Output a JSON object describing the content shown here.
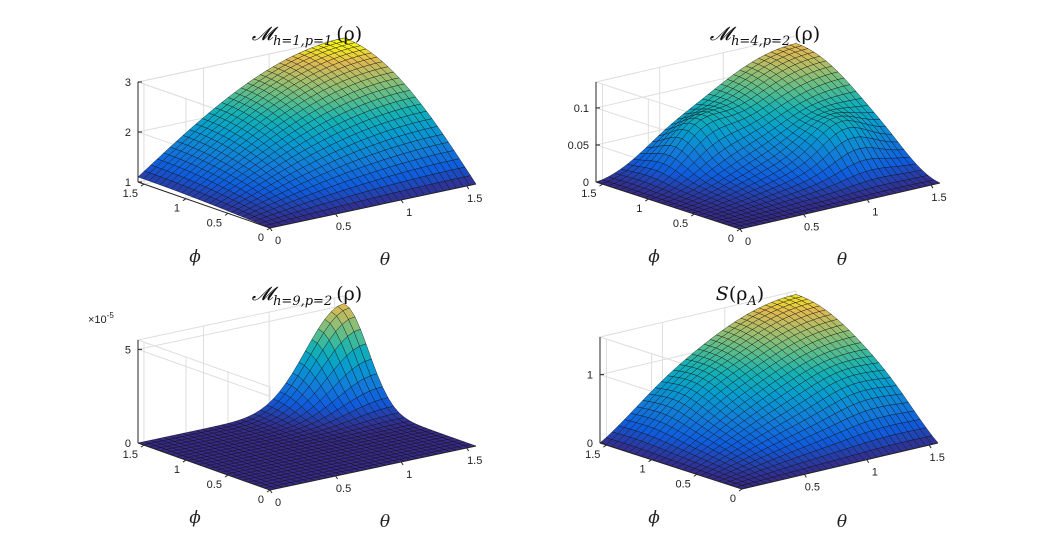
{
  "figure": {
    "panels": [
      {
        "title": {
          "main": "𝓜",
          "sub": "h=1,p=1",
          "arg": "(ρ)"
        },
        "exponent_label": "",
        "chart_data": {
          "type": "surface",
          "xlabel": "θ",
          "ylabel": "ϕ",
          "xlim": [
            0,
            1.5708
          ],
          "ylim": [
            0,
            1.5708
          ],
          "zlim": [
            1,
            3
          ],
          "x_ticks": [
            "0",
            "0.5",
            "1",
            "1.5"
          ],
          "y_ticks": [
            "0",
            "0.5",
            "1",
            "1.5"
          ],
          "z_ticks": [
            "1",
            "2",
            "3"
          ],
          "z_tick_values": [
            1,
            2,
            3
          ],
          "grid": true,
          "colormap": "parula",
          "surface_model": {
            "kind": "m11",
            "x_count": 33,
            "y_count": 25
          }
        }
      },
      {
        "title": {
          "main": "𝓜",
          "sub": "h=4,p=2",
          "arg": "(ρ)"
        },
        "exponent_label": "",
        "chart_data": {
          "type": "surface",
          "xlabel": "θ",
          "ylabel": "ϕ",
          "xlim": [
            0,
            1.5708
          ],
          "ylim": [
            0,
            1.5708
          ],
          "zlim": [
            0,
            0.135
          ],
          "x_ticks": [
            "0",
            "0.5",
            "1",
            "1.5"
          ],
          "y_ticks": [
            "0",
            "0.5",
            "1",
            "1.5"
          ],
          "z_ticks": [
            "0",
            "0.05",
            "0.1"
          ],
          "z_tick_values": [
            0,
            0.05,
            0.1
          ],
          "grid": true,
          "colormap": "parula",
          "surface_model": {
            "kind": "m42",
            "x_count": 33,
            "y_count": 25
          }
        }
      },
      {
        "title": {
          "main": "𝓜",
          "sub": "h=9,p=2",
          "arg": "(ρ)"
        },
        "exponent_label": "×10",
        "exponent_power": "-5",
        "chart_data": {
          "type": "surface",
          "xlabel": "θ",
          "ylabel": "ϕ",
          "xlim": [
            0,
            1.5708
          ],
          "ylim": [
            0,
            1.5708
          ],
          "zlim": [
            0,
            5.5
          ],
          "x_ticks": [
            "0",
            "0.5",
            "1",
            "1.5"
          ],
          "y_ticks": [
            "0",
            "0.5",
            "1",
            "1.5"
          ],
          "z_ticks": [
            "0",
            "5"
          ],
          "z_tick_values": [
            0,
            5
          ],
          "grid": true,
          "colormap": "parula",
          "surface_model": {
            "kind": "m92",
            "x_count": 33,
            "y_count": 25
          }
        }
      },
      {
        "title": {
          "main": "S",
          "sub": "",
          "arg": "(ρ",
          "arg_sub": "A",
          "arg_close": ")"
        },
        "exponent_label": "",
        "chart_data": {
          "type": "surface",
          "xlabel": "θ",
          "ylabel": "ϕ",
          "xlim": [
            0,
            1.5708
          ],
          "ylim": [
            0,
            1.5708
          ],
          "zlim": [
            0,
            1.55
          ],
          "x_ticks": [
            "0.5",
            "1",
            "1.5"
          ],
          "y_ticks": [
            "0",
            "0.5",
            "1",
            "1.5"
          ],
          "z_ticks": [
            "0",
            "1"
          ],
          "z_tick_values": [
            0,
            1
          ],
          "grid": true,
          "colormap": "parula",
          "surface_model": {
            "kind": "entropy",
            "x_count": 33,
            "y_count": 25
          }
        }
      }
    ]
  }
}
